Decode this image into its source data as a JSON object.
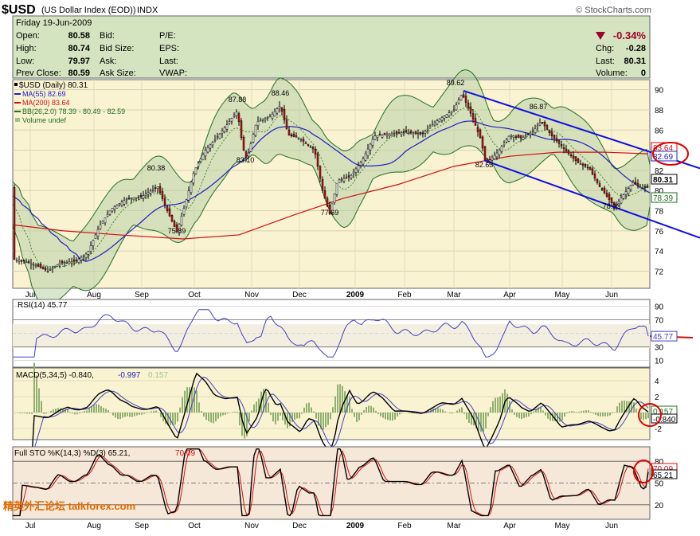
{
  "header": {
    "symbol": "$USD",
    "name": "(US Dollar Index (EOD))",
    "exchange": "INDX",
    "watermark": "© StockCharts.com"
  },
  "quote": {
    "date": "Friday  19-Jun-2009",
    "open_label": "Open:",
    "open": "80.58",
    "high_label": "High:",
    "high": "80.74",
    "low_label": "Low:",
    "low": "79.97",
    "prev_close_label": "Prev Close:",
    "prev_close": "80.59",
    "bid_label": "Bid:",
    "bid_size_label": "Bid Size:",
    "ask_label": "Ask:",
    "ask_size_label": "Ask Size:",
    "pe_label": "P/E:",
    "eps_label": "EPS:",
    "last_label": "Last:",
    "vwap_label": "VWAP:",
    "pct_change": "-0.34%",
    "chg_label": "Chg:",
    "chg": "-0.28",
    "last2_label": "Last:",
    "last": "80.31",
    "volume_label": "Volume:",
    "volume": "0",
    "down_color": "#a0002a"
  },
  "legend": {
    "price": "$USD (Daily) 80.31",
    "ma55": "MA(55) 82.69",
    "ma200": "MA(200) 83.64",
    "bb": "BB(26,2.0) 78.39 - 80.49 - 82.59",
    "volume": "Volume undef"
  },
  "panels": {
    "rsi_title": "RSI(14) 45.77",
    "macd_title": "MACD(5,34,5) -0.840,",
    "macd_signal": "-0.997",
    "macd_hist": "0.157",
    "sto_title": "Full STO %K(14,3) %D(3) 65.21,",
    "sto_d": "70.09",
    "footer_watermark": "精英外汇论坛 talkforex.com"
  },
  "colors": {
    "price": "#000000",
    "ma55": "#2020c0",
    "ma200": "#d01010",
    "bb": "#207020",
    "bb_fill": "#b8cfa8",
    "panel_bg": "#faf3d2",
    "trendline": "#1010e0",
    "circle": "#e00000"
  },
  "x_months": [
    "Jul",
    "Aug",
    "Sep",
    "Oct",
    "Nov",
    "Dec",
    "2009",
    "Feb",
    "Mar",
    "Apr",
    "May",
    "Jun"
  ],
  "annotations": {
    "peaks": [
      "80.38",
      "75.89",
      "87.88",
      "83.10",
      "88.46",
      "77.69",
      "89.62",
      "82.63",
      "86.87",
      "78.33"
    ],
    "right_labels": {
      "ma200": "83.64",
      "ma55": "82.69",
      "last": "80.31",
      "bb_low": "78.39",
      "rsi": "45.77",
      "macd_hist": "0.157",
      "macd": "-0.840",
      "sto_d": "70.09",
      "sto_k": "65.21"
    }
  },
  "chart_data": [
    {
      "type": "candlestick",
      "title": "$USD (Daily) 80.31",
      "yticks": [
        72,
        74,
        76,
        78,
        80,
        82,
        84,
        86,
        88,
        90
      ],
      "ylim": [
        70.3,
        91
      ],
      "key_points": [
        {
          "x": "Jul-2008",
          "y": 73.0
        },
        {
          "x": "Jul-2008",
          "y": 72.2
        },
        {
          "x": "Aug-2008",
          "y": 73.5
        },
        {
          "x": "Sep-2008",
          "y": 80.38
        },
        {
          "x": "Sep-2008",
          "y": 75.89
        },
        {
          "x": "Oct-2008",
          "y": 82.0
        },
        {
          "x": "Oct-2008",
          "y": 87.88
        },
        {
          "x": "Nov-2008",
          "y": 83.1
        },
        {
          "x": "Nov-2008",
          "y": 88.46
        },
        {
          "x": "Dec-2008",
          "y": 77.69
        },
        {
          "x": "Jan-2009",
          "y": 84.0
        },
        {
          "x": "Feb-2009",
          "y": 86.5
        },
        {
          "x": "Mar-2009",
          "y": 89.62
        },
        {
          "x": "Mar-2009",
          "y": 82.63
        },
        {
          "x": "Apr-2009",
          "y": 86.87
        },
        {
          "x": "Jun-2009",
          "y": 78.33
        },
        {
          "x": "Jun-2009",
          "y": 80.31
        }
      ],
      "series": [
        {
          "name": "MA(55)",
          "value": 82.69
        },
        {
          "name": "MA(200)",
          "value": 83.64
        },
        {
          "name": "BB(26,2.0)",
          "values": [
            78.39,
            80.49,
            82.59
          ]
        }
      ]
    },
    {
      "type": "line",
      "title": "RSI(14) 45.77",
      "yticks": [
        10,
        30,
        50,
        70,
        90
      ],
      "ylim": [
        0,
        100
      ],
      "last": 45.77
    },
    {
      "type": "line",
      "title": "MACD(5,34,5)",
      "yticks": [
        -2,
        0,
        2,
        4
      ],
      "series": [
        {
          "name": "MACD",
          "last": -0.84
        },
        {
          "name": "Signal",
          "last": -0.997
        },
        {
          "name": "Histogram",
          "last": 0.157
        }
      ]
    },
    {
      "type": "line",
      "title": "Full STO %K(14,3) %D(3)",
      "yticks": [
        20,
        50,
        80
      ],
      "ylim": [
        0,
        100
      ],
      "series": [
        {
          "name": "%K",
          "last": 65.21
        },
        {
          "name": "%D",
          "last": 70.09
        }
      ]
    }
  ]
}
